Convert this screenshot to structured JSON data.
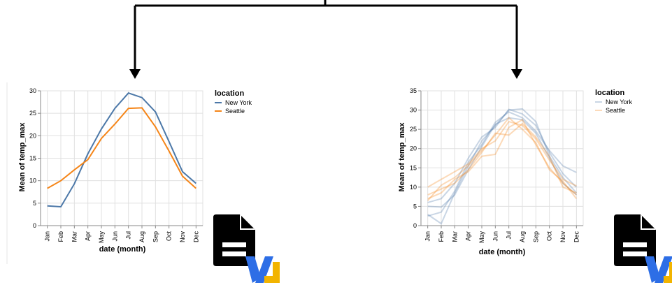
{
  "colors": {
    "new_york": "#4c78a8",
    "seattle": "#f58518",
    "grid": "#e0e0e0",
    "axis": "#888888",
    "text": "#000000",
    "connector": "#000000",
    "file_icon": "#000000",
    "vl_blue": "#2d6ee6",
    "vl_yellow": "#f2b400"
  },
  "icons": [
    "arrow-down-icon",
    "file-document-icon",
    "vega-lite-logo-icon"
  ],
  "chart_data": [
    {
      "type": "line",
      "x": [
        "Jan",
        "Feb",
        "Mar",
        "Apr",
        "May",
        "Jun",
        "Jul",
        "Aug",
        "Sep",
        "Oct",
        "Nov",
        "Dec"
      ],
      "xlabel": "date (month)",
      "ylabel": "Mean of temp_max",
      "ylim": [
        0,
        30
      ],
      "yticks": [
        0,
        5,
        10,
        15,
        20,
        25,
        30
      ],
      "grid": true,
      "legend": {
        "title": "location",
        "position": "right"
      },
      "series": [
        {
          "name": "New York",
          "color": "#4c78a8",
          "values": [
            4.4,
            4.2,
            9.3,
            16.0,
            21.5,
            26.1,
            29.5,
            28.5,
            25.3,
            18.7,
            12.0,
            9.4
          ]
        },
        {
          "name": "Seattle",
          "color": "#f58518",
          "values": [
            8.3,
            10.0,
            12.4,
            14.7,
            19.4,
            22.6,
            26.1,
            26.2,
            22.0,
            16.6,
            11.0,
            8.3
          ]
        }
      ]
    },
    {
      "type": "line",
      "x": [
        "Jan",
        "Feb",
        "Mar",
        "Apr",
        "May",
        "Jun",
        "Jul",
        "Aug",
        "Sep",
        "Oct",
        "Nov",
        "Dec"
      ],
      "xlabel": "date (month)",
      "ylabel": "Mean of temp_max",
      "ylim": [
        0,
        35
      ],
      "yticks": [
        0,
        5,
        10,
        15,
        20,
        25,
        30,
        35
      ],
      "grid": true,
      "opacity": 0.3,
      "legend": {
        "title": "location",
        "position": "right"
      },
      "legend_entries": [
        {
          "name": "New York",
          "color": "#4c78a8"
        },
        {
          "name": "Seattle",
          "color": "#f58518"
        }
      ],
      "series": [
        {
          "group": "New York",
          "color": "#4c78a8",
          "values": [
            2.9,
            0.5,
            8.5,
            15.5,
            22.0,
            26.0,
            30.0,
            30.3,
            27.0,
            18.0,
            12.5,
            8.5
          ]
        },
        {
          "group": "New York",
          "color": "#4c78a8",
          "values": [
            5.0,
            4.8,
            8.0,
            14.5,
            20.5,
            26.3,
            28.0,
            27.5,
            24.0,
            17.5,
            11.0,
            8.0
          ]
        },
        {
          "group": "New York",
          "color": "#4c78a8",
          "values": [
            6.0,
            7.0,
            11.0,
            17.5,
            23.0,
            25.5,
            30.2,
            29.0,
            26.0,
            19.0,
            13.5,
            10.0
          ]
        },
        {
          "group": "New York",
          "color": "#4c78a8",
          "values": [
            2.5,
            3.5,
            9.0,
            16.5,
            21.0,
            26.8,
            29.5,
            28.0,
            24.5,
            19.5,
            15.5,
            13.8
          ]
        },
        {
          "group": "Seattle",
          "color": "#f58518",
          "values": [
            7.0,
            8.5,
            12.0,
            14.0,
            18.0,
            18.5,
            25.5,
            27.5,
            21.0,
            15.0,
            11.0,
            8.0
          ]
        },
        {
          "group": "Seattle",
          "color": "#f58518",
          "values": [
            10.0,
            12.0,
            14.0,
            16.0,
            20.0,
            22.0,
            27.0,
            26.0,
            22.5,
            17.0,
            12.0,
            10.3
          ]
        },
        {
          "group": "Seattle",
          "color": "#f58518",
          "values": [
            8.0,
            9.5,
            11.0,
            14.5,
            19.0,
            24.0,
            23.5,
            26.5,
            23.0,
            18.0,
            10.0,
            8.5
          ]
        },
        {
          "group": "Seattle",
          "color": "#f58518",
          "values": [
            6.5,
            10.5,
            12.5,
            15.5,
            19.5,
            23.5,
            28.0,
            25.0,
            21.5,
            14.5,
            11.5,
            7.0
          ]
        }
      ]
    }
  ]
}
